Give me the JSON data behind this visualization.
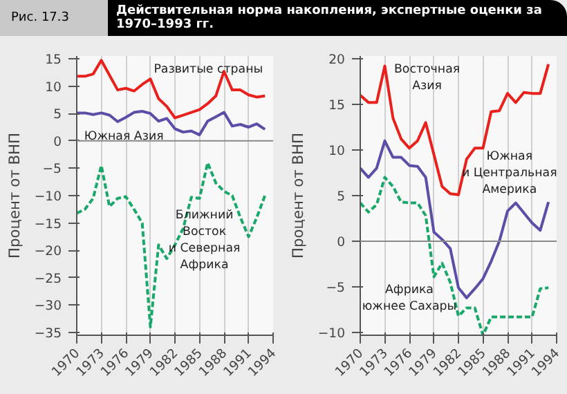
{
  "chart_data": [
    {
      "type": "line",
      "title": "Действительная норма накопления, экспертные оценки за 1970–1993 гг.",
      "ylabel": "Процент от ВНП",
      "x": [
        1970,
        1971,
        1972,
        1973,
        1974,
        1975,
        1976,
        1977,
        1978,
        1979,
        1980,
        1981,
        1982,
        1983,
        1984,
        1985,
        1986,
        1987,
        1988,
        1989,
        1990,
        1991,
        1992,
        1993
      ],
      "series": [
        {
          "name": "Развитые страны",
          "color": "#e8211d",
          "line_style": "solid",
          "values": [
            11.8,
            11.8,
            12.2,
            14.7,
            12.0,
            9.3,
            9.6,
            9.1,
            10.3,
            11.3,
            7.7,
            6.3,
            4.2,
            4.7,
            5.2,
            5.7,
            6.8,
            8.2,
            12.7,
            9.3,
            9.3,
            8.4,
            8.0,
            8.2
          ]
        },
        {
          "name": "Южная Азия",
          "color": "#5a4ea6",
          "line_style": "solid",
          "values": [
            5.1,
            5.1,
            4.8,
            5.1,
            4.7,
            3.5,
            4.3,
            5.2,
            5.4,
            5.0,
            3.6,
            4.1,
            2.2,
            1.6,
            1.8,
            1.1,
            3.6,
            4.4,
            5.2,
            2.7,
            3.0,
            2.5,
            3.1,
            2.1
          ]
        },
        {
          "name": "Ближний\nВосток\nи Северная\nАфрика",
          "color": "#1aa86a",
          "line_style": "dashed",
          "values": [
            -13.2,
            -12.5,
            -10.5,
            -4.5,
            -12.0,
            -10.5,
            -10.2,
            -12.5,
            -15.0,
            -34.0,
            -19.0,
            -21.5,
            -19.0,
            -16.0,
            -10.3,
            -10.5,
            -4.0,
            -7.7,
            -9.2,
            -10.0,
            -14.0,
            -17.5,
            -14.0,
            -10.0
          ]
        }
      ],
      "annotations": [
        "Рис. 17.3"
      ],
      "xlim": [
        1970,
        1994
      ],
      "xticks": [
        1970,
        1973,
        1976,
        1979,
        1982,
        1985,
        1988,
        1991,
        1994
      ],
      "ylim": [
        -35.5,
        15.5
      ],
      "yticks": [
        {
          "value": -35,
          "label": "−35"
        },
        {
          "value": -30,
          "label": "−30"
        },
        {
          "value": -25,
          "label": "−25"
        },
        {
          "value": -20,
          "label": "−20"
        },
        {
          "value": -15,
          "label": "−15"
        },
        {
          "value": -10,
          "label": "−10"
        },
        {
          "value": -5,
          "label": "−5"
        },
        0,
        5,
        10,
        15
      ],
      "ref_lines": [
        {
          "axis": "y",
          "value": 0,
          "color": "#888888"
        }
      ],
      "grid": "x"
    },
    {
      "type": "line",
      "ylabel": "Процент от ВНП",
      "x": [
        1970,
        1971,
        1972,
        1973,
        1974,
        1975,
        1976,
        1977,
        1978,
        1979,
        1980,
        1981,
        1982,
        1983,
        1984,
        1985,
        1986,
        1987,
        1988,
        1989,
        1990,
        1991,
        1992,
        1993
      ],
      "series": [
        {
          "name": "Восточная\nАзия",
          "color": "#e8211d",
          "line_style": "solid",
          "values": [
            16.0,
            15.2,
            15.2,
            19.2,
            13.5,
            11.2,
            10.2,
            11.0,
            13.0,
            9.5,
            6.0,
            5.2,
            5.1,
            9.0,
            10.2,
            10.2,
            14.2,
            14.3,
            16.2,
            15.2,
            16.3,
            16.2,
            16.2,
            19.4
          ]
        },
        {
          "name": "Южная\nи Центральная\nАмерика",
          "color": "#5a4ea6",
          "line_style": "solid",
          "values": [
            8.0,
            7.0,
            8.0,
            11.0,
            9.2,
            9.2,
            8.3,
            8.2,
            7.0,
            1.0,
            0.2,
            -0.8,
            -5.1,
            -6.2,
            -5.2,
            -4.1,
            -2.2,
            0.0,
            3.3,
            4.2,
            3.1,
            2.0,
            1.2,
            4.3
          ]
        },
        {
          "name": "Африка\nюжнее Сахары",
          "color": "#1aa86a",
          "line_style": "dashed",
          "values": [
            4.2,
            3.2,
            4.0,
            7.0,
            6.0,
            4.3,
            4.2,
            4.2,
            2.8,
            -3.9,
            -2.4,
            -4.5,
            -8.2,
            -7.3,
            -7.3,
            -10.3,
            -8.3,
            -8.3,
            -8.3,
            -8.3,
            -8.3,
            -8.3,
            -5.2,
            -5.1
          ]
        }
      ],
      "xlim": [
        1970,
        1994
      ],
      "xticks": [
        1970,
        1973,
        1976,
        1979,
        1982,
        1985,
        1988,
        1991,
        1994
      ],
      "ylim": [
        -10.3,
        20.3
      ],
      "yticks": [
        {
          "value": -10,
          "label": "−10"
        },
        {
          "value": -5,
          "label": "−5"
        },
        0,
        5,
        10,
        15,
        20
      ],
      "ref_lines": [
        {
          "axis": "y",
          "value": 0,
          "color": "#888888"
        }
      ],
      "grid": "x"
    }
  ]
}
